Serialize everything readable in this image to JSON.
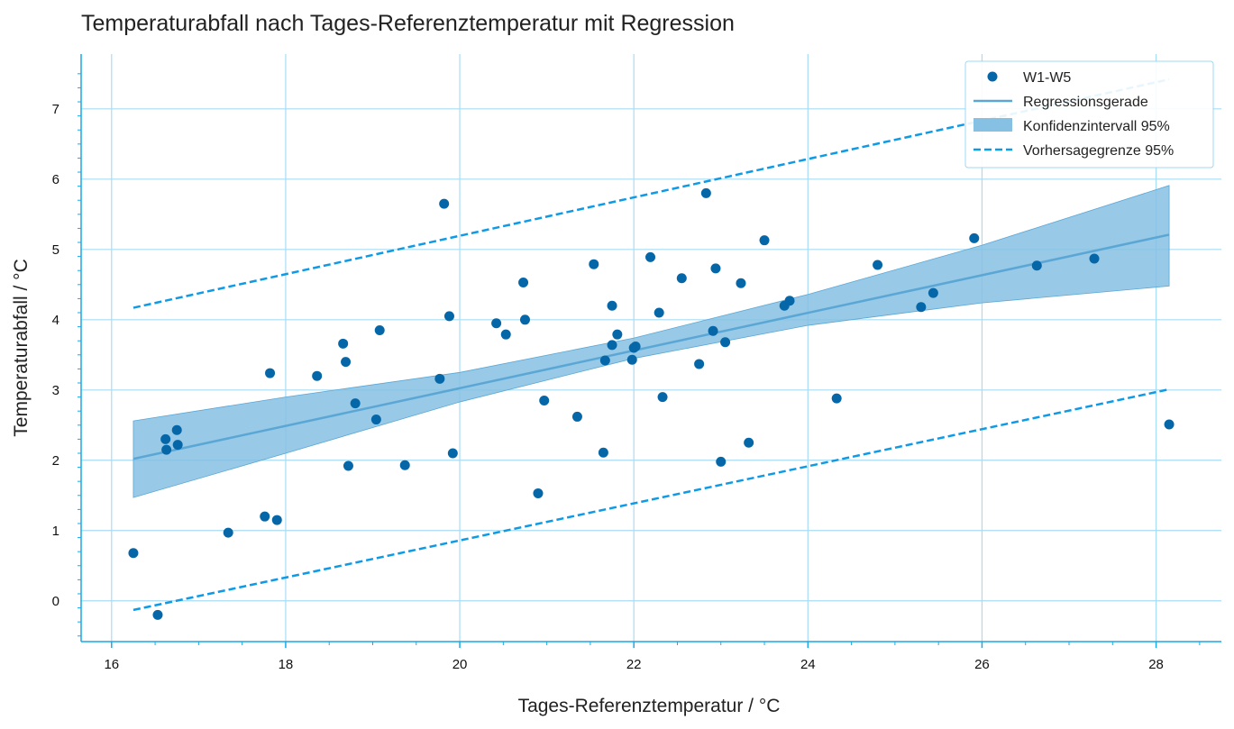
{
  "chart_data": {
    "type": "scatter",
    "title": "Temperaturabfall nach Tages-Referenztemperatur mit Regression",
    "xlabel": "Tages-Referenztemperatur / °C",
    "ylabel": "Temperaturabfall / °C",
    "xlim": [
      15.65,
      28.75
    ],
    "ylim": [
      -0.58,
      7.78
    ],
    "xticks": [
      16,
      18,
      20,
      22,
      24,
      26,
      28
    ],
    "yticks": [
      0,
      1,
      2,
      3,
      4,
      5,
      6,
      7
    ],
    "grid": true,
    "legend_position": "top-right",
    "colors": {
      "points": "#0567a8",
      "regression": "#5aa7d6",
      "confidence": "#86c0e3",
      "prediction": "#0f9ae6",
      "grid": "#a8dcf5",
      "spine": "#1aa9e6"
    },
    "series": [
      {
        "name": "W1-W5",
        "kind": "points",
        "x": [
          16.25,
          16.53,
          16.62,
          16.63,
          16.75,
          16.76,
          17.34,
          17.76,
          17.82,
          17.9,
          18.36,
          18.66,
          18.69,
          18.72,
          18.8,
          19.04,
          19.08,
          19.37,
          19.77,
          19.82,
          19.88,
          19.92,
          20.42,
          20.53,
          20.73,
          20.75,
          20.9,
          20.97,
          21.35,
          21.54,
          21.65,
          21.67,
          21.75,
          21.75,
          21.81,
          21.98,
          22.0,
          22.02,
          22.19,
          22.29,
          22.33,
          22.55,
          22.75,
          22.83,
          22.91,
          22.94,
          23.0,
          23.05,
          23.23,
          23.32,
          23.5,
          23.73,
          23.79,
          24.33,
          24.8,
          25.3,
          25.44,
          25.91,
          26.63,
          27.29,
          28.15
        ],
        "y": [
          0.68,
          -0.2,
          2.3,
          2.15,
          2.43,
          2.22,
          0.97,
          1.2,
          3.24,
          1.15,
          3.2,
          3.66,
          3.4,
          1.92,
          2.81,
          2.58,
          3.85,
          1.93,
          3.16,
          5.65,
          4.05,
          2.1,
          3.95,
          3.79,
          4.53,
          4.0,
          1.53,
          2.85,
          2.62,
          4.79,
          2.11,
          3.42,
          3.64,
          4.2,
          3.79,
          3.43,
          3.6,
          3.62,
          4.89,
          4.1,
          2.9,
          4.59,
          3.37,
          5.8,
          3.84,
          4.73,
          1.98,
          3.68,
          4.52,
          2.25,
          5.13,
          4.2,
          4.27,
          2.88,
          4.78,
          4.18,
          4.38,
          5.16,
          4.77,
          4.87,
          2.51
        ]
      },
      {
        "name": "Regressionsgerade",
        "kind": "line",
        "x": [
          16.25,
          28.15
        ],
        "y": [
          2.02,
          5.21
        ]
      },
      {
        "name": "Konfidenzintervall 95%",
        "kind": "band",
        "x": [
          16.25,
          18.0,
          20.0,
          22.0,
          24.0,
          26.0,
          28.15
        ],
        "lower": [
          1.47,
          2.1,
          2.83,
          3.45,
          3.92,
          4.24,
          4.48
        ],
        "upper": [
          2.56,
          2.9,
          3.25,
          3.74,
          4.36,
          5.06,
          5.91
        ]
      },
      {
        "name": "Vorhersagegrenze 95%",
        "kind": "dashed",
        "upper": {
          "x": [
            16.25,
            28.15
          ],
          "y": [
            4.17,
            7.42
          ]
        },
        "lower": {
          "x": [
            16.25,
            28.15
          ],
          "y": [
            -0.13,
            3.01
          ]
        }
      }
    ]
  }
}
